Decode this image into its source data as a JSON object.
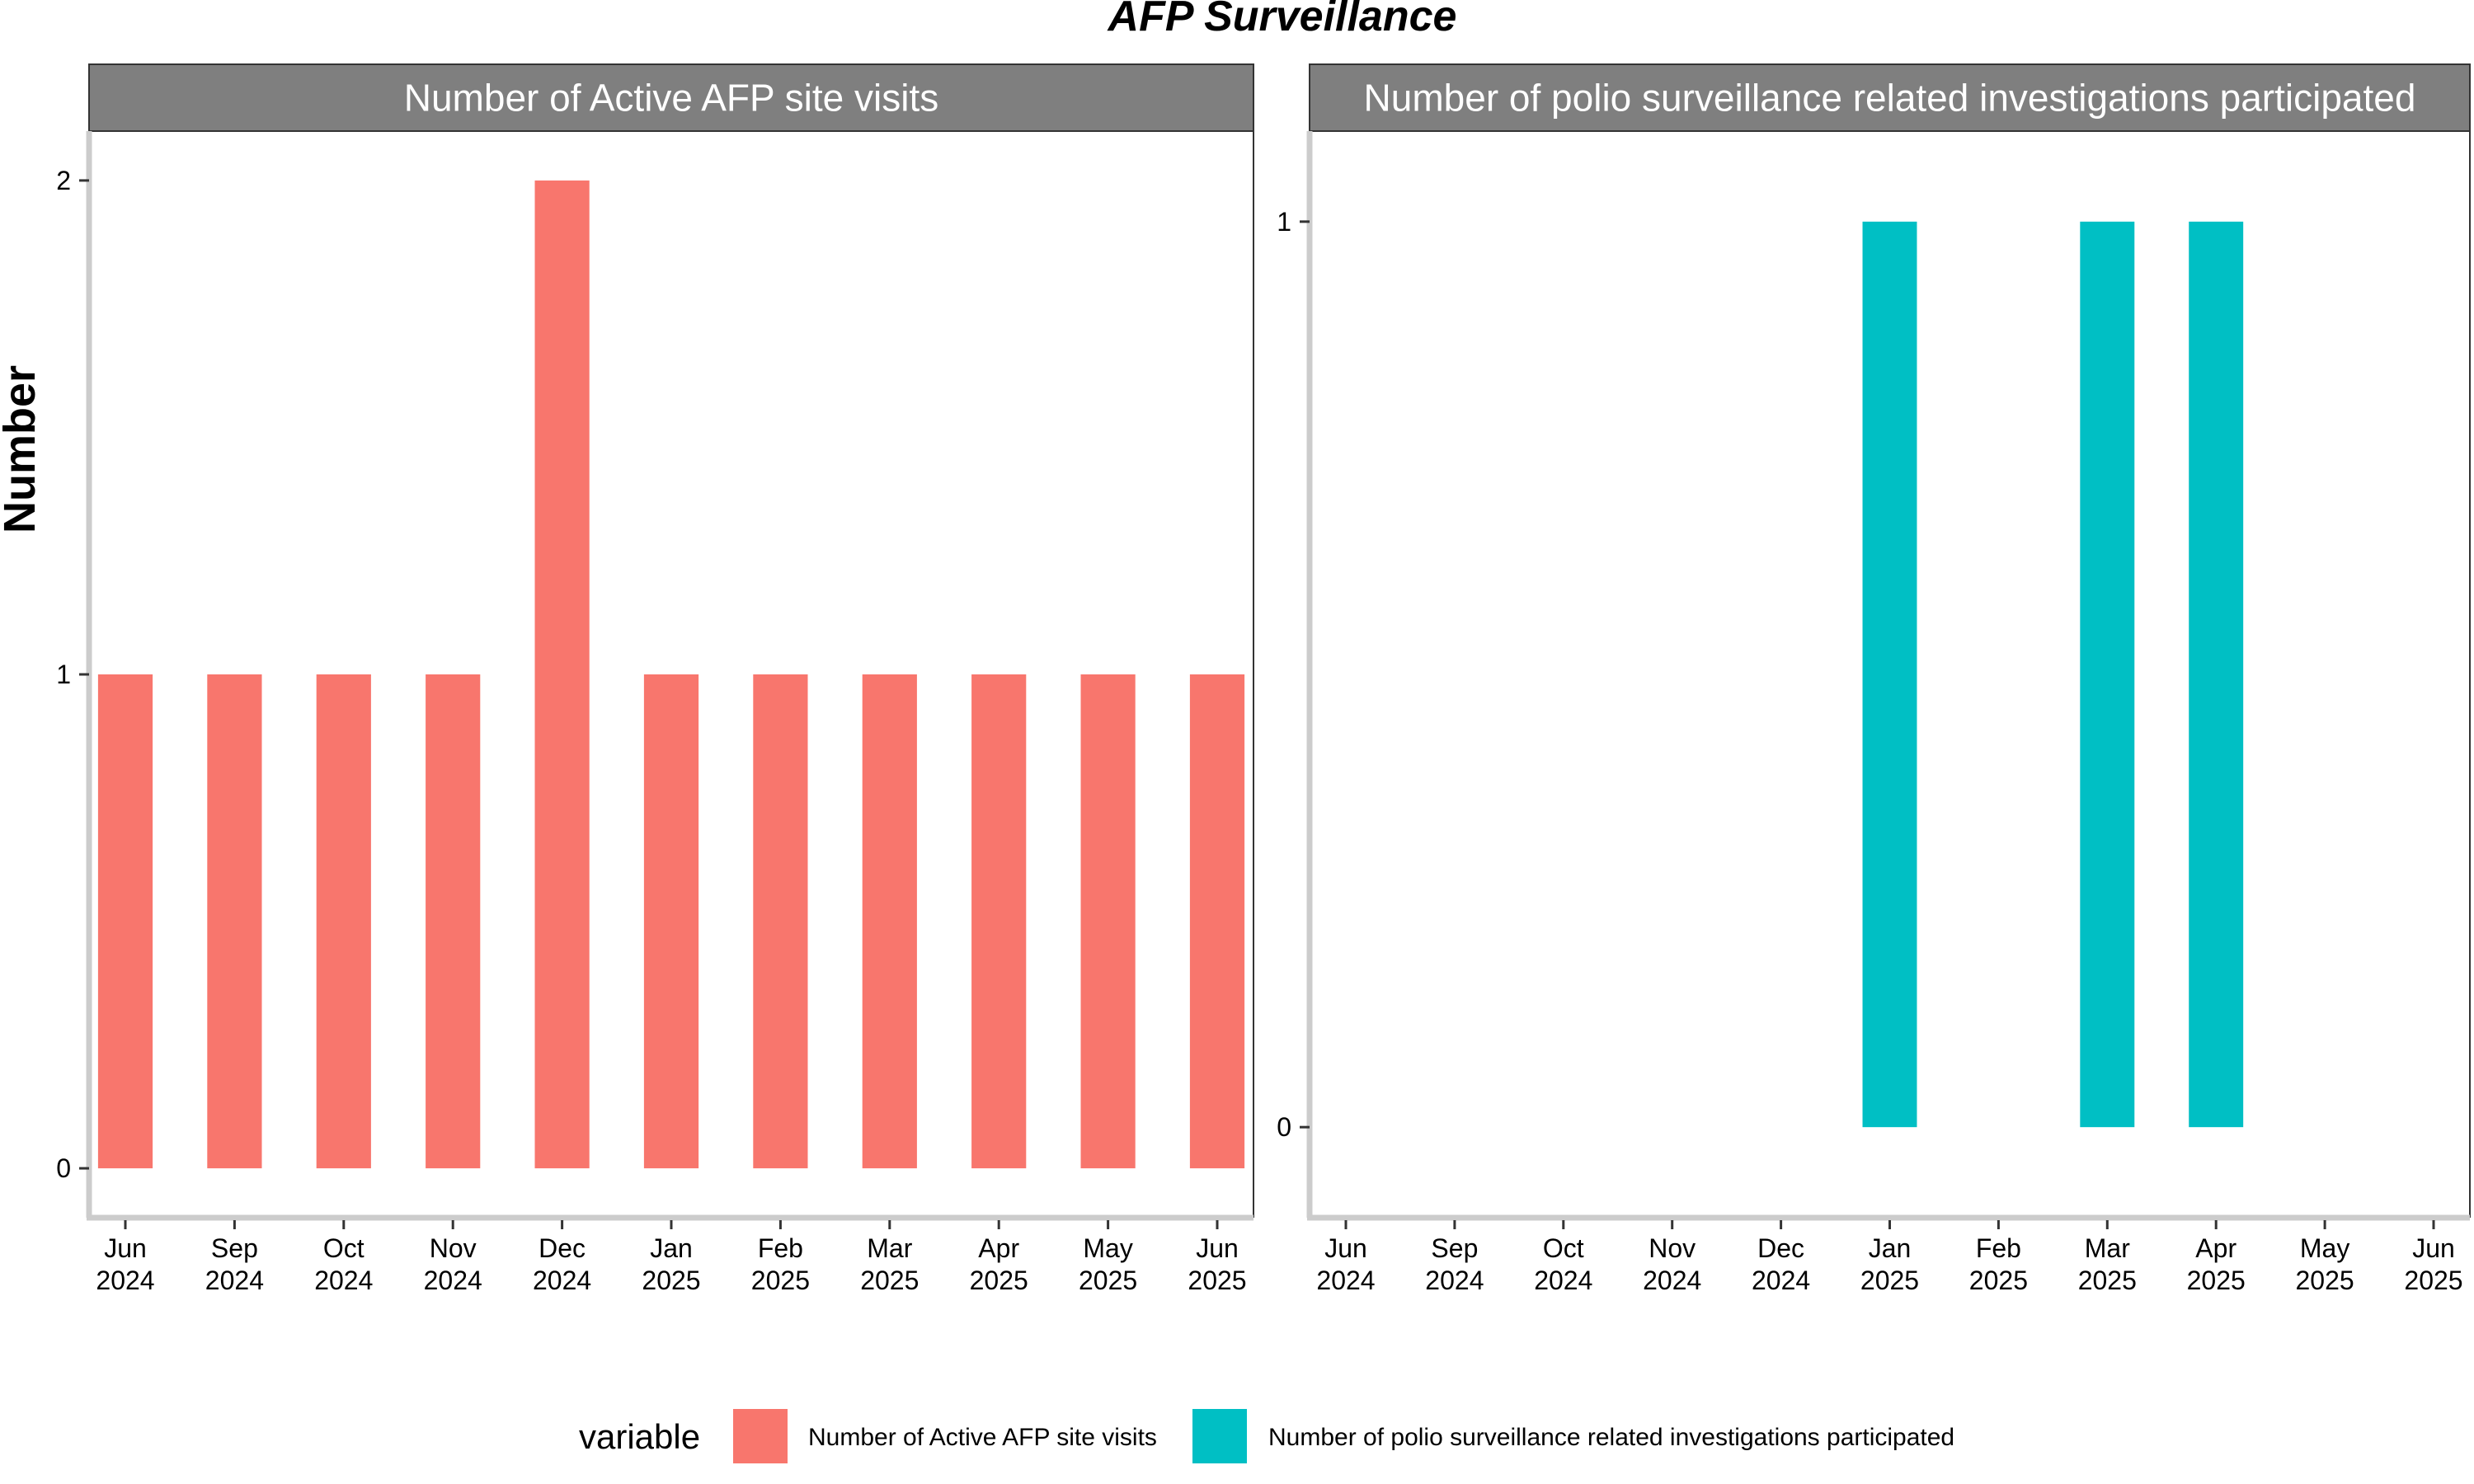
{
  "chart_data": {
    "type": "bar",
    "title": "AFP Surveillance",
    "ylabel": "Number",
    "xlabel": "",
    "x_ticks": [
      {
        "month": "Jun",
        "year": "2024"
      },
      {
        "month": "Sep",
        "year": "2024"
      },
      {
        "month": "Oct",
        "year": "2024"
      },
      {
        "month": "Nov",
        "year": "2024"
      },
      {
        "month": "Dec",
        "year": "2024"
      },
      {
        "month": "Jan",
        "year": "2025"
      },
      {
        "month": "Feb",
        "year": "2025"
      },
      {
        "month": "Mar",
        "year": "2025"
      },
      {
        "month": "Apr",
        "year": "2025"
      },
      {
        "month": "May",
        "year": "2025"
      },
      {
        "month": "Jun",
        "year": "2025"
      }
    ],
    "legend": {
      "title": "variable",
      "position": "bottom",
      "items": [
        {
          "label": "Number of Active AFP site visits",
          "color": "#F8766D"
        },
        {
          "label": "Number of polio surveillance related investigations participated",
          "color": "#00BFC4"
        }
      ]
    },
    "panels": [
      {
        "strip_label": "Number of Active AFP site visits",
        "color": "#F8766D",
        "ylim": [
          -0.1,
          2.1
        ],
        "yticks": [
          0,
          1,
          2
        ],
        "values": [
          1,
          1,
          1,
          1,
          2,
          1,
          1,
          1,
          1,
          1,
          1
        ]
      },
      {
        "strip_label": "Number of polio surveillance related investigations participated",
        "color": "#00BFC4",
        "ylim": [
          -0.1,
          1.1
        ],
        "yticks": [
          0,
          1
        ],
        "values": [
          null,
          null,
          null,
          null,
          null,
          1,
          null,
          1,
          1,
          null,
          null
        ]
      }
    ],
    "grid": false
  }
}
